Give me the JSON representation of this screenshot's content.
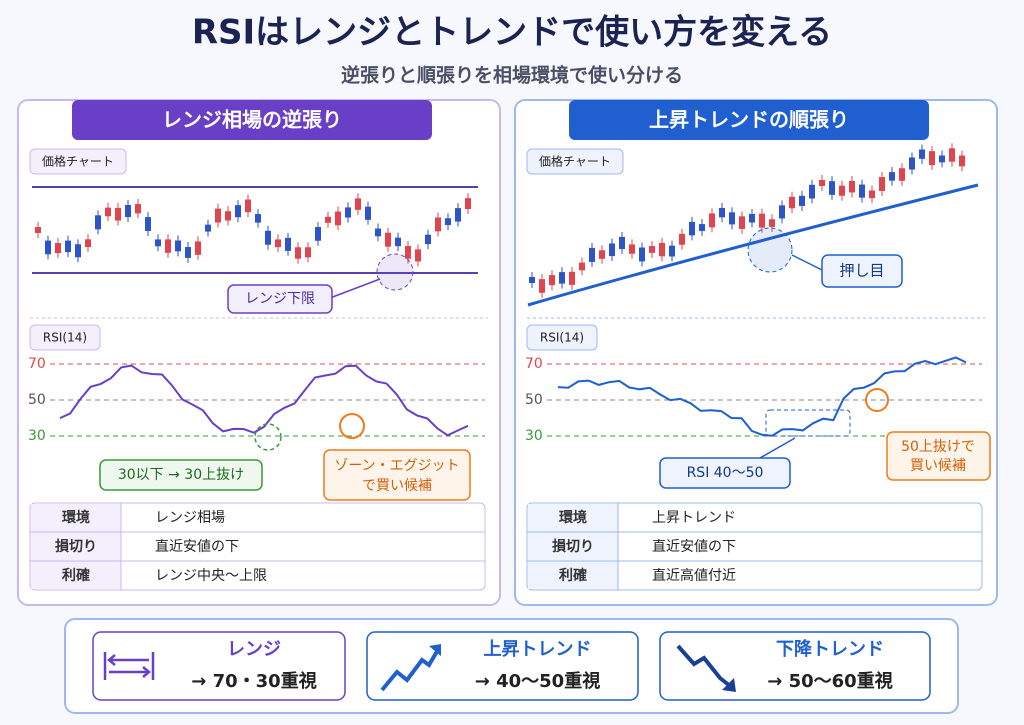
{
  "header": {
    "title": "RSIはレンジとトレンドで使い方を変える",
    "subtitle": "逆張りと順張りを相場環境で使い分ける"
  },
  "panels": [
    {
      "title": "レンジ相場の逆張り",
      "price_label": "価格チャート",
      "callout": "レンジ下限",
      "rsi_label": "RSI(14)",
      "rsi_levels": [
        70,
        50,
        30
      ],
      "rsi_callouts": [
        [
          "30以下 → 30上抜け"
        ],
        [
          "ゾーン・エグジット",
          "で買い候補"
        ]
      ],
      "table": [
        [
          "環境",
          "レンジ相場"
        ],
        [
          "損切り",
          "直近安値の下"
        ],
        [
          "利確",
          "レンジ中央〜上限"
        ]
      ]
    },
    {
      "title": "上昇トレンドの順張り",
      "price_label": "価格チャート",
      "callout": "押し目",
      "rsi_label": "RSI(14)",
      "rsi_levels": [
        70,
        50,
        30
      ],
      "rsi_callouts": [
        [
          "RSI 40〜50"
        ],
        [
          "50上抜けで",
          "買い候補"
        ]
      ],
      "table": [
        [
          "環境",
          "上昇トレンド"
        ],
        [
          "損切り",
          "直近安値の下"
        ],
        [
          "利確",
          "直近高値付近"
        ]
      ]
    }
  ],
  "summary": [
    {
      "title": "レンジ",
      "text": "→ 70・30重視"
    },
    {
      "title": "上昇トレンド",
      "text": "→ 40〜50重視"
    },
    {
      "title": "下降トレンド",
      "text": "→ 50〜60重視"
    }
  ]
}
